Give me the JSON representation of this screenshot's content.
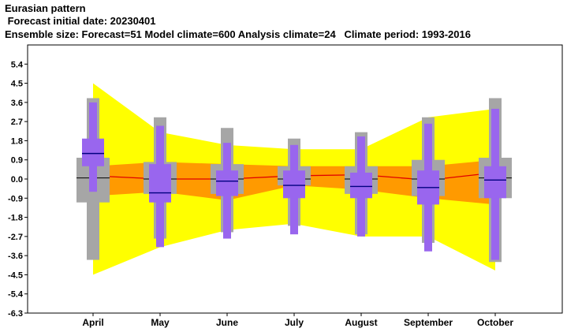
{
  "header": {
    "line1": "Eurasian pattern",
    "line2": " Forecast initial date: 20230401",
    "line3": "Ensemble size: Forecast=51 Model climate=600 Analysis climate=24   Climate period: 1993-2016"
  },
  "chart_data": {
    "type": "box",
    "title": "Eurasian pattern",
    "categories": [
      "April",
      "May",
      "June",
      "July",
      "August",
      "September",
      "October"
    ],
    "yticks": [
      "5.4",
      "4.5",
      "3.6",
      "2.7",
      "1.8",
      "0.9",
      "0.0",
      "-0.9",
      "-1.8",
      "-2.7",
      "-3.6",
      "-4.5",
      "-5.4",
      "-6.3"
    ],
    "ylim": [
      -6.3,
      6.3
    ],
    "grid": false,
    "colors": {
      "climate_outer": "#ffff00",
      "climate_inner": "#ff9a00",
      "climate_median": "#e00000",
      "model_climate": "#a6a6a6",
      "forecast": "#9966ee",
      "forecast_median": "#000080"
    },
    "climate_band_outer": {
      "upper": [
        4.5,
        2.2,
        1.6,
        1.4,
        1.4,
        2.9,
        3.3
      ],
      "lower": [
        -4.5,
        -3.2,
        -2.4,
        -2.1,
        -2.7,
        -2.7,
        -4.3
      ]
    },
    "climate_band_inner": {
      "upper": [
        0.6,
        0.8,
        0.7,
        0.6,
        0.6,
        0.6,
        0.9
      ],
      "lower": [
        -0.8,
        -0.6,
        -1.0,
        -0.3,
        -0.5,
        -0.9,
        -1.2
      ]
    },
    "climate_median": [
      0.15,
      0.0,
      0.0,
      0.15,
      0.2,
      -0.05,
      0.3
    ],
    "model_climate": {
      "whisker_low": [
        -3.8,
        -2.8,
        -2.5,
        -2.2,
        -2.6,
        -3.0,
        -3.9
      ],
      "q1": [
        -1.1,
        -0.7,
        -0.7,
        -0.3,
        -0.7,
        -0.8,
        -0.9
      ],
      "q3": [
        1.0,
        0.8,
        0.7,
        0.6,
        0.6,
        0.9,
        1.0
      ],
      "whisker_high": [
        3.8,
        2.9,
        2.4,
        1.9,
        2.2,
        2.9,
        3.8
      ],
      "median": [
        0.05,
        0.0,
        0.0,
        0.0,
        0.0,
        0.0,
        0.05
      ]
    },
    "forecast": {
      "min": [
        -0.6,
        -3.2,
        -2.8,
        -2.6,
        -2.7,
        -3.4,
        -3.8
      ],
      "q1": [
        0.6,
        -1.1,
        -0.8,
        -0.9,
        -0.9,
        -1.2,
        -0.9
      ],
      "median": [
        1.2,
        -0.65,
        -0.1,
        -0.3,
        -0.35,
        -0.4,
        -0.05
      ],
      "q3": [
        1.9,
        0.7,
        0.4,
        0.4,
        0.3,
        0.4,
        0.6
      ],
      "max": [
        3.6,
        2.5,
        1.7,
        1.6,
        2.0,
        2.6,
        3.3
      ]
    }
  }
}
